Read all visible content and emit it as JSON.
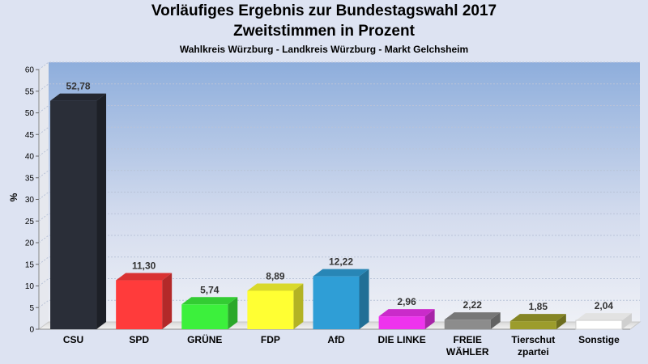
{
  "chart_data": {
    "type": "bar",
    "title": "Vorläufiges Ergebnis zur Bundestagswahl 2017",
    "subtitle": "Zweitstimmen in Prozent",
    "subsubtitle": "Wahlkreis Würzburg - Landkreis Würzburg - Markt Gelchsheim",
    "ylabel": "%",
    "ylim": [
      0,
      60
    ],
    "yticks": [
      0,
      5,
      10,
      15,
      20,
      25,
      30,
      35,
      40,
      45,
      50,
      55,
      60
    ],
    "grid": true,
    "categories": [
      [
        "CSU"
      ],
      [
        "SPD"
      ],
      [
        "GRÜNE"
      ],
      [
        "FDP"
      ],
      [
        "AfD"
      ],
      [
        "DIE LINKE"
      ],
      [
        "FREIE",
        "WÄHLER"
      ],
      [
        "Tierschut",
        "zpartei"
      ],
      [
        "Sonstige"
      ]
    ],
    "values": [
      52.78,
      11.3,
      5.74,
      8.89,
      12.22,
      2.96,
      2.22,
      1.85,
      2.04
    ],
    "value_labels": [
      "52,78",
      "11,30",
      "5,74",
      "8,89",
      "12,22",
      "2,96",
      "2,22",
      "1,85",
      "2,04"
    ],
    "colors": [
      "#2a2e38",
      "#ff3b3b",
      "#3cf03c",
      "#ffff33",
      "#2f9ed6",
      "#ee33ee",
      "#8c8c8c",
      "#9c9c2c",
      "#ffffff"
    ]
  }
}
